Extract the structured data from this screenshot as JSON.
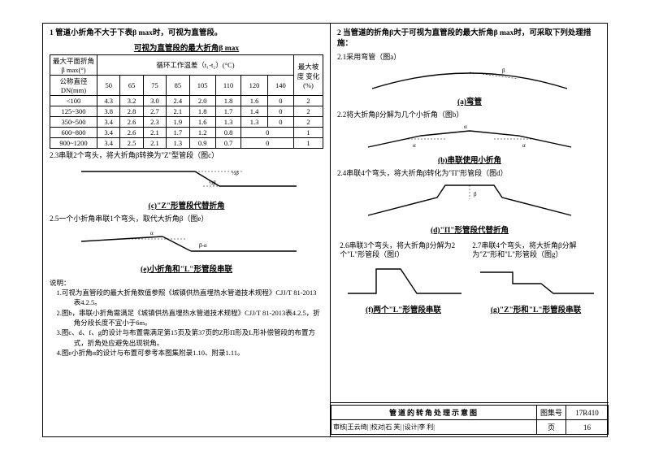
{
  "left": {
    "heading1": "1 管道小折角不大于下表β max时，可视为直管段。",
    "tableTitle": "可视为直管段的最大折角β max",
    "th_a": "最大平面折角\nβ max(°)",
    "th_b": "循环工作温差（t₁-t₂）(°C)",
    "th_c": "最大坡度\n变化(%)",
    "th_dn": "公称直径\nDN(mm)",
    "cols": [
      "50",
      "65",
      "75",
      "85",
      "105",
      "110",
      "120",
      "140"
    ],
    "rows": [
      {
        "dn": "<100",
        "v": [
          "4.3",
          "3.2",
          "3.0",
          "2.4",
          "2.0",
          "1.8",
          "1.6",
          "0"
        ],
        "s": "2"
      },
      {
        "dn": "125~300",
        "v": [
          "3.8",
          "2.8",
          "2.7",
          "2.1",
          "1.8",
          "1.7",
          "1.4",
          "0"
        ],
        "s": "2"
      },
      {
        "dn": "350~500",
        "v": [
          "3.4",
          "2.6",
          "2.3",
          "1.9",
          "1.6",
          "1.3",
          "1.3",
          "0"
        ],
        "s": "2"
      },
      {
        "dn": "600~800",
        "v": [
          "3.4",
          "2.6",
          "2.1",
          "1.7",
          "1.2",
          "0.8",
          "0"
        ],
        "s": "1"
      },
      {
        "dn": "900~1200",
        "v": [
          "3.4",
          "2.5",
          "2.1",
          "1.3",
          "0.9",
          "0.7",
          "0"
        ],
        "s": "1"
      }
    ],
    "sub23": "2.3串联2个弯头，将大折角β转换为\"Z\"型管段（图c）",
    "cap_c": "(c)\"Z\"形管段代替折角",
    "sub25": "2.5一个小折角串联1个弯头，取代大折角β（图e）",
    "cap_e": "(e)小折角和\"L\"形管段串联",
    "notesLabel": "说明：",
    "n1": "1.可视为直管段的最大折角数值参照《城镇供热直埋热水管道技术规程》CJJ/T 81-2013表4.2.5。",
    "n2": "2.图b，串联小折角需满足《城镇供热直埋热水管道技术规程》CJJ/T 81-2013表4.2.5，折角分段长度不宜小于6m。",
    "n3": "3.图c、d、f、g的设计与布置需满足第15页及第37页的Z形Π形及L形补偿管段的布置方式，折角处应避免出现锐角。",
    "n4": "4.图e小折角α的设计与布置可参考本图集附录1.10、附录1.11。"
  },
  "right": {
    "heading2": "2 当管道的折角β大于可视为直管段的最大折角β max时，可采取下列处理措施：",
    "sub21": "2.1采用弯管（图a）",
    "cap_a": "(a)弯管",
    "sub22": "2.2将大折角β分解为几个小折角（图b）",
    "cap_b": "(b)串联使用小折角",
    "sub24": "2.4串联4个弯头，将大折角β转化为\"Π\"形管段（图d）",
    "cap_d": "(d)\"Π\"形管段代替折角",
    "sub26": "2.6串联3个弯头，将大折角β分解为2个\"L\"形管段（图f）",
    "sub27": "2.7串联4个弯头，将大折角β分解为\"Z\"形和\"L\"形管段（图g）",
    "cap_f": "(f)两个\"L\"形管段串联",
    "cap_g": "(g)\"Z\"形和\"L\"形管段串联"
  },
  "titleBlock": {
    "main": "管道的转角处理示意图",
    "setLabel": "图集号",
    "set": "17R410",
    "row2": "审核|王云绮|         |校对|石 芙|        |设计|李 利|        ",
    "pageLabel": "页",
    "page": "16"
  },
  "style": {
    "stroke": "#000",
    "thin": "0.8",
    "thick": "1.4"
  }
}
